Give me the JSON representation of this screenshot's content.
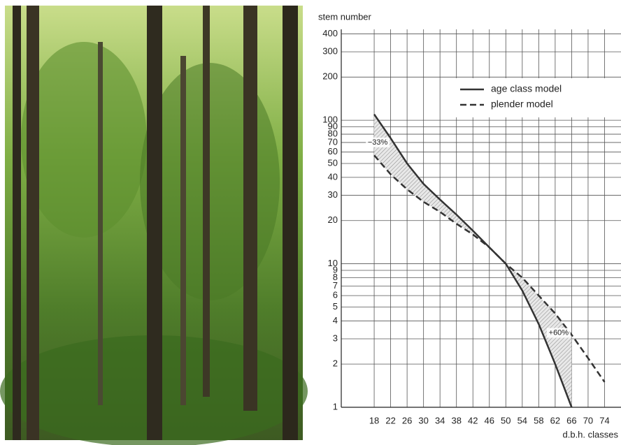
{
  "chart_data": {
    "type": "line",
    "y_label": "stem number",
    "x_label": "d.b.h. classes",
    "x": [
      18,
      22,
      26,
      30,
      34,
      38,
      42,
      46,
      50,
      54,
      58,
      62,
      66,
      70,
      74
    ],
    "series": [
      {
        "name": "age class model",
        "color": "#333333",
        "line_style": "solid",
        "values": [
          110,
          75,
          50,
          36,
          28,
          22,
          17,
          13,
          10,
          6.5,
          3.8,
          2.0,
          1.0,
          null,
          null
        ]
      },
      {
        "name": "plender model",
        "color": "#333333",
        "line_style": "dashed",
        "values": [
          57,
          42,
          33,
          27,
          23,
          19,
          16,
          13,
          10,
          8,
          6,
          4.5,
          3.2,
          2.2,
          1.5
        ]
      }
    ],
    "annotations": [
      {
        "text": "−33%",
        "x": 18,
        "y": 70
      },
      {
        "text": "+60%",
        "x": 62,
        "y": 3.3
      }
    ],
    "xlim": [
      10,
      78
    ],
    "xticks": [
      18,
      22,
      26,
      30,
      34,
      38,
      42,
      46,
      50,
      54,
      58,
      62,
      66,
      70,
      74
    ],
    "ylim": [
      1,
      430
    ],
    "yticks": [
      1,
      2,
      3,
      4,
      5,
      6,
      7,
      8,
      9,
      10,
      20,
      30,
      40,
      50,
      60,
      70,
      80,
      90,
      100,
      200,
      300,
      400
    ],
    "log_y": true,
    "grid": true,
    "legend": "upper right"
  }
}
